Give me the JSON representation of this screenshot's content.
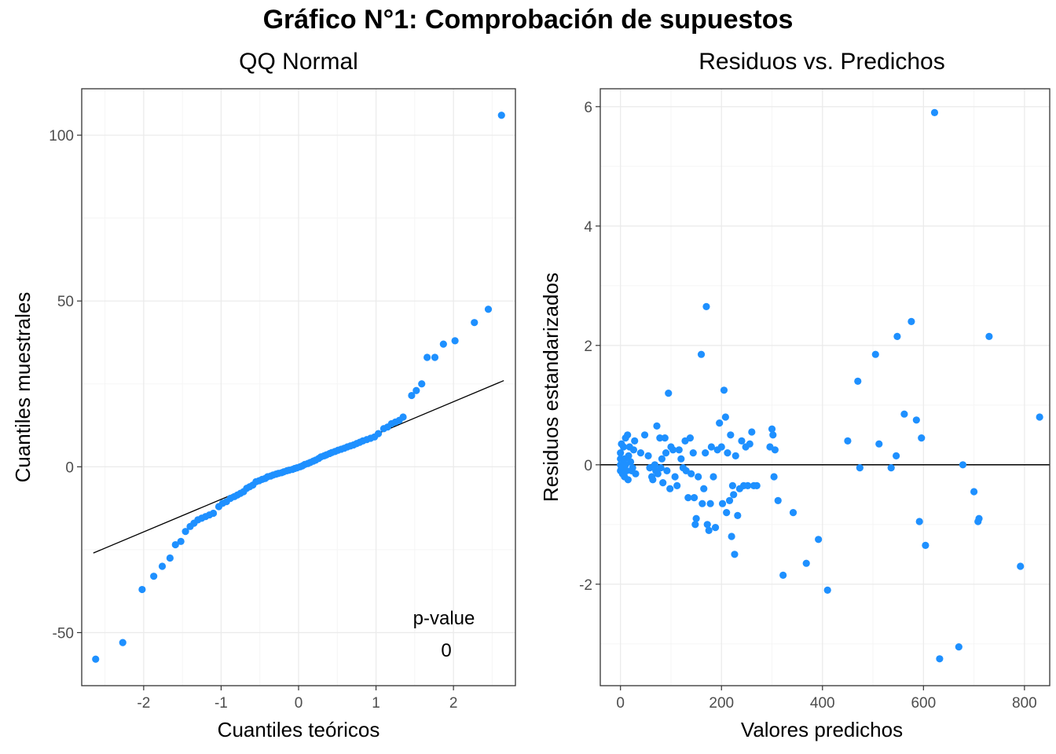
{
  "main_title": "Gráfico N°1: Comprobación de supuestos",
  "colors": {
    "point": "#1e90ff",
    "line": "#000000",
    "grid_major": "#ebebeb",
    "grid_minor": "#f5f5f5",
    "panel_border": "#333333"
  },
  "chart_data": [
    {
      "type": "scatter",
      "title": "QQ Normal",
      "xlabel": "Cuantiles teóricos",
      "ylabel": "Cuantiles muestrales",
      "xlim": [
        -2.8,
        2.8
      ],
      "ylim": [
        -66,
        114
      ],
      "xticks": [
        -2,
        -1,
        0,
        1,
        2
      ],
      "xtick_labels": [
        "-2",
        "-1",
        "0",
        "1",
        "2"
      ],
      "yticks": [
        -50,
        0,
        50,
        100
      ],
      "ytick_labels": [
        "-50",
        "0",
        "50",
        "100"
      ],
      "grid": true,
      "annotation": {
        "label": "p-value",
        "value": "0"
      },
      "reference_line": {
        "x": [
          -2.65,
          2.65
        ],
        "y": [
          -26,
          26
        ]
      },
      "points": [
        [
          -2.62,
          -58
        ],
        [
          -2.27,
          -53
        ],
        [
          -2.02,
          -37
        ],
        [
          -1.87,
          -33
        ],
        [
          -1.76,
          -30
        ],
        [
          -1.66,
          -27.5
        ],
        [
          -1.59,
          -23.5
        ],
        [
          -1.52,
          -22.5
        ],
        [
          -1.46,
          -19.5
        ],
        [
          -1.4,
          -18
        ],
        [
          -1.35,
          -17
        ],
        [
          -1.3,
          -16
        ],
        [
          -1.25,
          -15.5
        ],
        [
          -1.2,
          -15
        ],
        [
          -1.15,
          -14.5
        ],
        [
          -1.1,
          -14
        ],
        [
          -1.03,
          -12
        ],
        [
          -0.98,
          -11
        ],
        [
          -0.93,
          -10.5
        ],
        [
          -0.88,
          -9.5
        ],
        [
          -0.83,
          -9
        ],
        [
          -0.79,
          -8.5
        ],
        [
          -0.75,
          -8
        ],
        [
          -0.71,
          -7.5
        ],
        [
          -0.67,
          -6.5
        ],
        [
          -0.63,
          -6
        ],
        [
          -0.59,
          -5.5
        ],
        [
          -0.55,
          -4.5
        ],
        [
          -0.51,
          -4.2
        ],
        [
          -0.47,
          -3.8
        ],
        [
          -0.43,
          -3.5
        ],
        [
          -0.4,
          -3
        ],
        [
          -0.36,
          -2.8
        ],
        [
          -0.33,
          -2.5
        ],
        [
          -0.29,
          -2.2
        ],
        [
          -0.26,
          -2
        ],
        [
          -0.22,
          -1.8
        ],
        [
          -0.19,
          -1.5
        ],
        [
          -0.15,
          -1.2
        ],
        [
          -0.12,
          -1
        ],
        [
          -0.08,
          -0.8
        ],
        [
          -0.05,
          -0.5
        ],
        [
          -0.02,
          -0.3
        ],
        [
          0.02,
          0
        ],
        [
          0.05,
          0.3
        ],
        [
          0.08,
          0.7
        ],
        [
          0.12,
          1
        ],
        [
          0.15,
          1.3
        ],
        [
          0.19,
          1.7
        ],
        [
          0.22,
          2
        ],
        [
          0.26,
          2.5
        ],
        [
          0.29,
          3
        ],
        [
          0.33,
          3.3
        ],
        [
          0.36,
          3.6
        ],
        [
          0.4,
          4
        ],
        [
          0.43,
          4.3
        ],
        [
          0.47,
          4.6
        ],
        [
          0.51,
          5
        ],
        [
          0.55,
          5.3
        ],
        [
          0.59,
          5.6
        ],
        [
          0.63,
          6
        ],
        [
          0.67,
          6.3
        ],
        [
          0.71,
          6.6
        ],
        [
          0.75,
          7
        ],
        [
          0.79,
          7.4
        ],
        [
          0.83,
          7.8
        ],
        [
          0.88,
          8.2
        ],
        [
          0.93,
          8.6
        ],
        [
          0.98,
          9
        ],
        [
          1.03,
          10
        ],
        [
          1.1,
          11.5
        ],
        [
          1.15,
          12
        ],
        [
          1.2,
          13
        ],
        [
          1.25,
          13.5
        ],
        [
          1.3,
          14
        ],
        [
          1.35,
          15
        ],
        [
          1.46,
          21.5
        ],
        [
          1.52,
          23
        ],
        [
          1.59,
          25
        ],
        [
          1.66,
          33
        ],
        [
          1.76,
          33
        ],
        [
          1.87,
          37
        ],
        [
          2.02,
          38
        ],
        [
          2.27,
          43.5
        ],
        [
          2.45,
          47.5
        ],
        [
          2.62,
          106
        ]
      ]
    },
    {
      "type": "scatter",
      "title": "Residuos vs. Predichos",
      "xlabel": "Valores predichos",
      "ylabel": "Residuos estandarizados",
      "xlim": [
        -40,
        850
      ],
      "ylim": [
        -3.7,
        6.3
      ],
      "xticks": [
        0,
        200,
        400,
        600,
        800
      ],
      "xtick_labels": [
        "0",
        "200",
        "400",
        "600",
        "800"
      ],
      "yticks": [
        -2,
        0,
        2,
        4,
        6
      ],
      "ytick_labels": [
        "-2",
        "0",
        "2",
        "4",
        "6"
      ],
      "grid": true,
      "hline": 0,
      "points": [
        [
          0,
          0.2
        ],
        [
          0,
          0.1
        ],
        [
          0,
          0
        ],
        [
          0,
          -0.1
        ],
        [
          2,
          -0.05
        ],
        [
          2,
          0.35
        ],
        [
          4,
          -0.15
        ],
        [
          5,
          0.05
        ],
        [
          6,
          0.3
        ],
        [
          8,
          -0.2
        ],
        [
          8,
          0.1
        ],
        [
          10,
          0
        ],
        [
          10,
          0.45
        ],
        [
          12,
          -0.1
        ],
        [
          14,
          0.5
        ],
        [
          15,
          -0.25
        ],
        [
          16,
          0.15
        ],
        [
          18,
          0.3
        ],
        [
          20,
          0.05
        ],
        [
          22,
          -0.1
        ],
        [
          24,
          -0.05
        ],
        [
          26,
          0.25
        ],
        [
          28,
          0.4
        ],
        [
          30,
          -0.15
        ],
        [
          40,
          0.2
        ],
        [
          48,
          0.5
        ],
        [
          55,
          0.15
        ],
        [
          58,
          -0.05
        ],
        [
          62,
          -0.2
        ],
        [
          64,
          -0.25
        ],
        [
          68,
          0
        ],
        [
          70,
          -0.1
        ],
        [
          72,
          0.65
        ],
        [
          74,
          -0.15
        ],
        [
          78,
          0.45
        ],
        [
          80,
          -0.05
        ],
        [
          82,
          0.1
        ],
        [
          84,
          -0.3
        ],
        [
          88,
          0.45
        ],
        [
          90,
          0.2
        ],
        [
          92,
          -0.1
        ],
        [
          95,
          1.2
        ],
        [
          98,
          -0.4
        ],
        [
          100,
          0.3
        ],
        [
          104,
          0.25
        ],
        [
          108,
          -0.2
        ],
        [
          112,
          -0.35
        ],
        [
          116,
          0.25
        ],
        [
          120,
          0.1
        ],
        [
          124,
          -0.05
        ],
        [
          128,
          0.4
        ],
        [
          130,
          -0.1
        ],
        [
          134,
          -0.55
        ],
        [
          138,
          0.45
        ],
        [
          140,
          -0.15
        ],
        [
          144,
          0.2
        ],
        [
          146,
          -0.55
        ],
        [
          148,
          -1
        ],
        [
          150,
          -0.9
        ],
        [
          154,
          -0.2
        ],
        [
          160,
          1.85
        ],
        [
          162,
          -0.65
        ],
        [
          165,
          -0.4
        ],
        [
          168,
          0.2
        ],
        [
          170,
          2.65
        ],
        [
          172,
          -1
        ],
        [
          175,
          -1.1
        ],
        [
          178,
          -0.65
        ],
        [
          180,
          0.3
        ],
        [
          184,
          -0.2
        ],
        [
          188,
          -1.05
        ],
        [
          192,
          0.25
        ],
        [
          196,
          0.7
        ],
        [
          200,
          0.3
        ],
        [
          202,
          -0.65
        ],
        [
          205,
          1.25
        ],
        [
          208,
          0.8
        ],
        [
          210,
          -0.8
        ],
        [
          212,
          0.2
        ],
        [
          216,
          -0.6
        ],
        [
          218,
          0.5
        ],
        [
          220,
          -1.2
        ],
        [
          222,
          -0.35
        ],
        [
          224,
          -0.5
        ],
        [
          226,
          -1.5
        ],
        [
          228,
          0.15
        ],
        [
          232,
          -0.85
        ],
        [
          236,
          -0.4
        ],
        [
          240,
          0.4
        ],
        [
          244,
          -0.35
        ],
        [
          248,
          0.3
        ],
        [
          252,
          -0.35
        ],
        [
          256,
          0.35
        ],
        [
          260,
          0.55
        ],
        [
          264,
          -0.35
        ],
        [
          270,
          -0.35
        ],
        [
          296,
          0.3
        ],
        [
          300,
          0.6
        ],
        [
          302,
          0.5
        ],
        [
          304,
          -0.2
        ],
        [
          306,
          0.25
        ],
        [
          312,
          -0.6
        ],
        [
          322,
          -1.85
        ],
        [
          342,
          -0.8
        ],
        [
          368,
          -1.65
        ],
        [
          392,
          -1.25
        ],
        [
          410,
          -2.1
        ],
        [
          450,
          0.4
        ],
        [
          470,
          1.4
        ],
        [
          474,
          -0.05
        ],
        [
          505,
          1.85
        ],
        [
          512,
          0.35
        ],
        [
          536,
          -0.05
        ],
        [
          546,
          0.15
        ],
        [
          548,
          2.15
        ],
        [
          562,
          0.85
        ],
        [
          576,
          2.4
        ],
        [
          586,
          0.75
        ],
        [
          592,
          -0.95
        ],
        [
          596,
          0.45
        ],
        [
          604,
          -1.35
        ],
        [
          622,
          5.9
        ],
        [
          632,
          -3.25
        ],
        [
          670,
          -3.05
        ],
        [
          678,
          0
        ],
        [
          700,
          -0.45
        ],
        [
          708,
          -0.95
        ],
        [
          710,
          -0.9
        ],
        [
          730,
          2.15
        ],
        [
          792,
          -1.7
        ],
        [
          830,
          0.8
        ]
      ]
    }
  ]
}
